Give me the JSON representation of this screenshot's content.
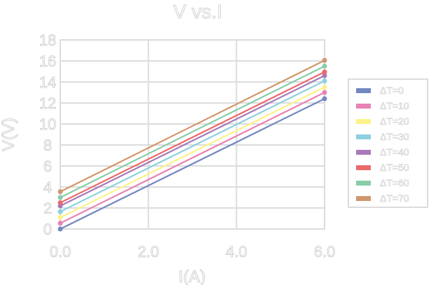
{
  "chart_data": {
    "type": "line",
    "title": "V vs.I",
    "xlabel": "I(A)",
    "ylabel": "V(V)",
    "xlim": [
      0,
      6
    ],
    "ylim": [
      0,
      18
    ],
    "x_ticks": [
      "0.0",
      "2.0",
      "4.0",
      "6.0"
    ],
    "y_ticks": [
      "0",
      "2",
      "4",
      "6",
      "8",
      "10",
      "12",
      "14",
      "16",
      "18"
    ],
    "grid": true,
    "legend_position": "right",
    "x": [
      0,
      6
    ],
    "series": [
      {
        "name": "ΔT=0",
        "color": "#7187c2",
        "values": [
          0.0,
          12.4
        ]
      },
      {
        "name": "ΔT=10",
        "color": "#e882b4",
        "values": [
          0.55,
          13.0
        ]
      },
      {
        "name": "ΔT=20",
        "color": "#fdf28a",
        "values": [
          1.1,
          13.5
        ]
      },
      {
        "name": "ΔT=30",
        "color": "#8dd0e0",
        "values": [
          1.65,
          14.1
        ]
      },
      {
        "name": "ΔT=40",
        "color": "#a87ab8",
        "values": [
          2.2,
          14.6
        ]
      },
      {
        "name": "ΔT=50",
        "color": "#ea6a6a",
        "values": [
          2.5,
          14.95
        ]
      },
      {
        "name": "ΔT=60",
        "color": "#8acca8",
        "values": [
          3.0,
          15.5
        ]
      },
      {
        "name": "ΔT=70",
        "color": "#d0966e",
        "values": [
          3.55,
          16.05
        ]
      }
    ]
  }
}
